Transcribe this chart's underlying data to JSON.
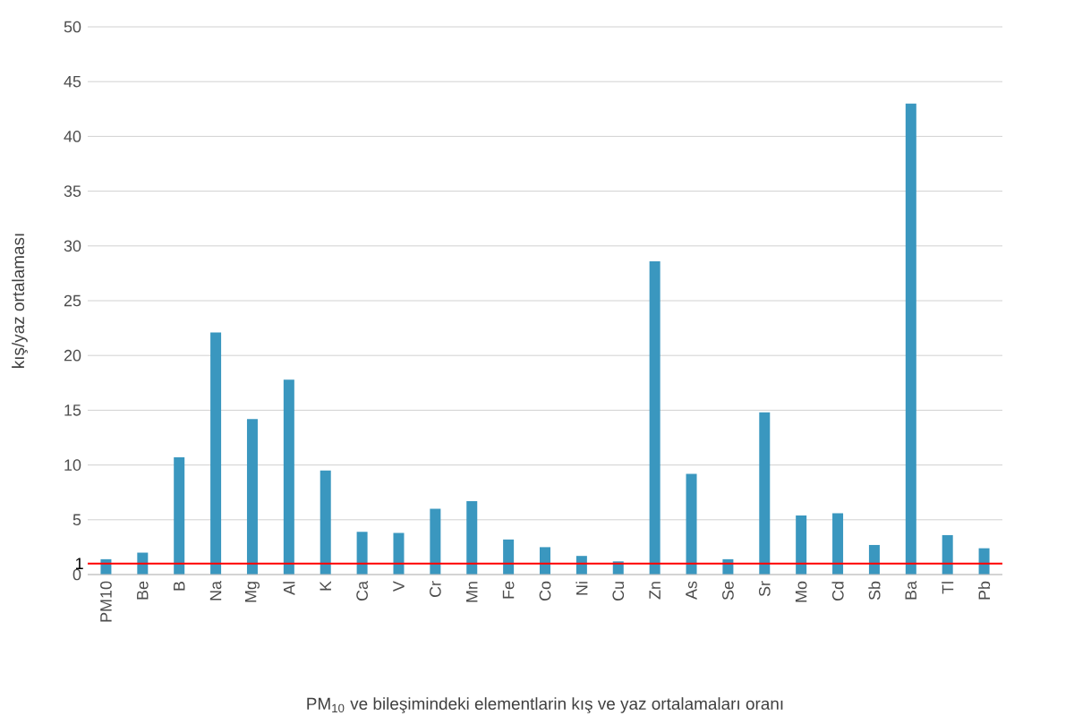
{
  "chart_data": {
    "type": "bar",
    "xlabel": "PM$_{10}$ ve bileşimindeki elementlarin kış ve yaz ortalamaları oranı",
    "ylabel": "kış/yaz ortalaması",
    "categories": [
      "PM10",
      "Be",
      "B",
      "Na",
      "Mg",
      "Al",
      "K",
      "Ca",
      "V",
      "Cr",
      "Mn",
      "Fe",
      "Co",
      "Ni",
      "Cu",
      "Zn",
      "As",
      "Se",
      "Sr",
      "Mo",
      "Cd",
      "Sb",
      "Ba",
      "Tl",
      "Pb"
    ],
    "values": [
      1.4,
      2.0,
      10.7,
      22.1,
      14.2,
      17.8,
      9.5,
      3.9,
      3.8,
      6.0,
      6.7,
      3.2,
      2.5,
      1.7,
      1.2,
      28.6,
      9.2,
      1.4,
      14.8,
      5.4,
      5.6,
      2.7,
      43.0,
      3.6,
      2.4
    ],
    "color": "#3a97bf",
    "ylim": [
      0,
      50
    ],
    "yticks": [
      0,
      5,
      10,
      15,
      20,
      25,
      30,
      35,
      40,
      45,
      50
    ],
    "grid": "y",
    "ref_lines": [
      {
        "axis": "y",
        "value": 1,
        "label": "1",
        "color": "#ff0000"
      }
    ]
  }
}
